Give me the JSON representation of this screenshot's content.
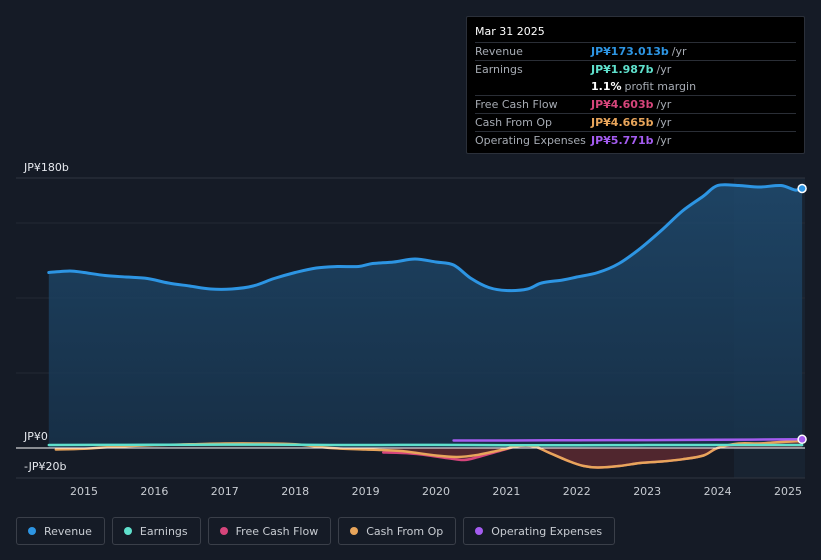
{
  "chart_data": {
    "type": "line",
    "x_ticks": [
      "2015",
      "2016",
      "2017",
      "2018",
      "2019",
      "2020",
      "2021",
      "2022",
      "2023",
      "2024",
      "2025"
    ],
    "y_labels": {
      "top": "JP¥180b",
      "zero": "JP¥0",
      "bottom": "-JP¥20b"
    },
    "ylim": [
      -20,
      180
    ],
    "series": [
      {
        "name": "Revenue",
        "color": "#2d95e3",
        "x": [
          2014.5,
          2014.8,
          2015.0,
          2015.3,
          2015.6,
          2015.9,
          2016.2,
          2016.5,
          2016.8,
          2017.1,
          2017.4,
          2017.7,
          2018.0,
          2018.3,
          2018.6,
          2018.9,
          2019.1,
          2019.4,
          2019.7,
          2020.0,
          2020.25,
          2020.5,
          2020.75,
          2021.0,
          2021.3,
          2021.5,
          2021.8,
          2022.0,
          2022.3,
          2022.6,
          2022.9,
          2023.2,
          2023.5,
          2023.8,
          2024.0,
          2024.3,
          2024.6,
          2024.9,
          2025.1,
          2025.2
        ],
        "values": [
          117,
          118,
          117,
          115,
          114,
          113,
          110,
          108,
          106,
          106,
          108,
          113,
          117,
          120,
          121,
          121,
          123,
          124,
          126,
          124,
          122,
          113,
          107,
          105,
          106,
          110,
          112,
          114,
          117,
          123,
          133,
          145,
          158,
          168,
          175,
          175,
          174,
          175,
          172,
          173
        ]
      },
      {
        "name": "Earnings",
        "color": "#5fe0cc",
        "x": [
          2014.5,
          2015.5,
          2016.5,
          2017.5,
          2018.5,
          2019.5,
          2020.5,
          2021.5,
          2022.5,
          2023.5,
          2024.5,
          2025.2
        ],
        "values": [
          2.0,
          2.1,
          2.2,
          2.3,
          2.0,
          2.1,
          2.0,
          1.8,
          1.9,
          2.0,
          2.0,
          2.0
        ]
      },
      {
        "name": "Free Cash Flow",
        "color": "#d6457b",
        "x": [
          2019.25,
          2019.6,
          2019.9,
          2020.2,
          2020.4,
          2020.6,
          2020.9,
          2021.2,
          2021.4,
          2021.6,
          2021.9,
          2022.1,
          2022.3,
          2022.6,
          2022.9,
          2023.2,
          2023.5,
          2023.8,
          2024.0,
          2024.3,
          2024.6,
          2024.9,
          2025.2
        ],
        "values": [
          -3,
          -3.5,
          -5,
          -7,
          -8,
          -6,
          -2,
          1.5,
          1.0,
          -3,
          -9,
          -12,
          -13,
          -12,
          -10,
          -9,
          -7.5,
          -5,
          0,
          2.5,
          3.0,
          4.0,
          4.6
        ]
      },
      {
        "name": "Cash From Op",
        "color": "#e8a55b",
        "x": [
          2014.6,
          2015.0,
          2015.5,
          2016.0,
          2016.5,
          2017.0,
          2017.5,
          2018.0,
          2018.5,
          2019.0,
          2019.5,
          2020.0,
          2020.3,
          2020.6,
          2020.9,
          2021.2,
          2021.4,
          2021.6,
          2021.9,
          2022.1,
          2022.3,
          2022.6,
          2022.9,
          2023.2,
          2023.5,
          2023.8,
          2024.0,
          2024.3,
          2024.6,
          2024.9,
          2025.2
        ],
        "values": [
          -1.0,
          -0.5,
          1.0,
          2.0,
          2.5,
          3.0,
          3.0,
          2.5,
          0,
          -1.0,
          -2.0,
          -5.0,
          -6.0,
          -4.5,
          -1.5,
          1.5,
          1.0,
          -3.0,
          -9.0,
          -12.0,
          -13.0,
          -12.0,
          -10.0,
          -9.0,
          -7.5,
          -5.0,
          0,
          3.0,
          3.0,
          4.0,
          4.7
        ]
      },
      {
        "name": "Operating Expenses",
        "color": "#a45cf0",
        "x": [
          2020.25,
          2021.0,
          2022.0,
          2023.0,
          2024.0,
          2025.2
        ],
        "values": [
          5.0,
          5.0,
          5.2,
          5.3,
          5.5,
          5.8
        ]
      }
    ]
  },
  "tooltip": {
    "date": "Mar 31 2025",
    "rows": [
      {
        "label": "Revenue",
        "value": "JP¥173.013b",
        "unit": "/yr",
        "color": "#2d95e3"
      },
      {
        "label": "Earnings",
        "value": "JP¥1.987b",
        "unit": "/yr",
        "color": "#5fe0cc"
      },
      {
        "label": "",
        "value": "1.1%",
        "unit": "profit margin",
        "color": "#ffffff"
      },
      {
        "label": "Free Cash Flow",
        "value": "JP¥4.603b",
        "unit": "/yr",
        "color": "#d6457b"
      },
      {
        "label": "Cash From Op",
        "value": "JP¥4.665b",
        "unit": "/yr",
        "color": "#e8a55b"
      },
      {
        "label": "Operating Expenses",
        "value": "JP¥5.771b",
        "unit": "/yr",
        "color": "#a45cf0"
      }
    ]
  },
  "legend": [
    {
      "label": "Revenue",
      "color": "#2d95e3"
    },
    {
      "label": "Earnings",
      "color": "#5fe0cc"
    },
    {
      "label": "Free Cash Flow",
      "color": "#d6457b"
    },
    {
      "label": "Cash From Op",
      "color": "#e8a55b"
    },
    {
      "label": "Operating Expenses",
      "color": "#a45cf0"
    }
  ]
}
